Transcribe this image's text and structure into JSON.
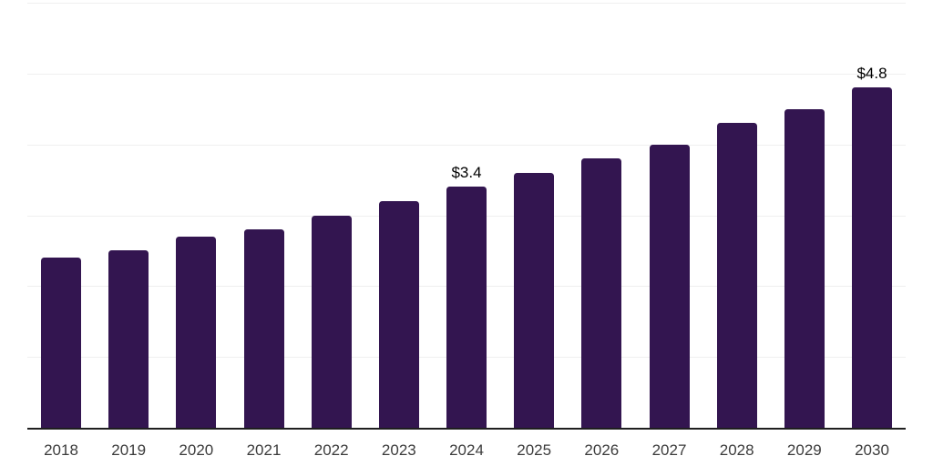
{
  "chart_data": {
    "type": "bar",
    "title": "",
    "xlabel": "",
    "ylabel": "",
    "categories": [
      "2018",
      "2019",
      "2020",
      "2021",
      "2022",
      "2023",
      "2024",
      "2025",
      "2026",
      "2027",
      "2028",
      "2029",
      "2030"
    ],
    "values": [
      2.4,
      2.5,
      2.7,
      2.8,
      3.0,
      3.2,
      3.4,
      3.6,
      3.8,
      4.0,
      4.3,
      4.5,
      4.8
    ],
    "data_labels": {
      "2024": "$3.4",
      "2030": "$4.8"
    },
    "ylim": [
      0,
      6
    ],
    "gridline_step": 1,
    "grid": true,
    "legend": false
  },
  "colors": {
    "background": "#ffffff",
    "bar": "#331550",
    "axis_line": "#1f1f1f",
    "gridline": "#efefef",
    "tick_label": "#3c3c3c",
    "data_label": "#000000"
  }
}
